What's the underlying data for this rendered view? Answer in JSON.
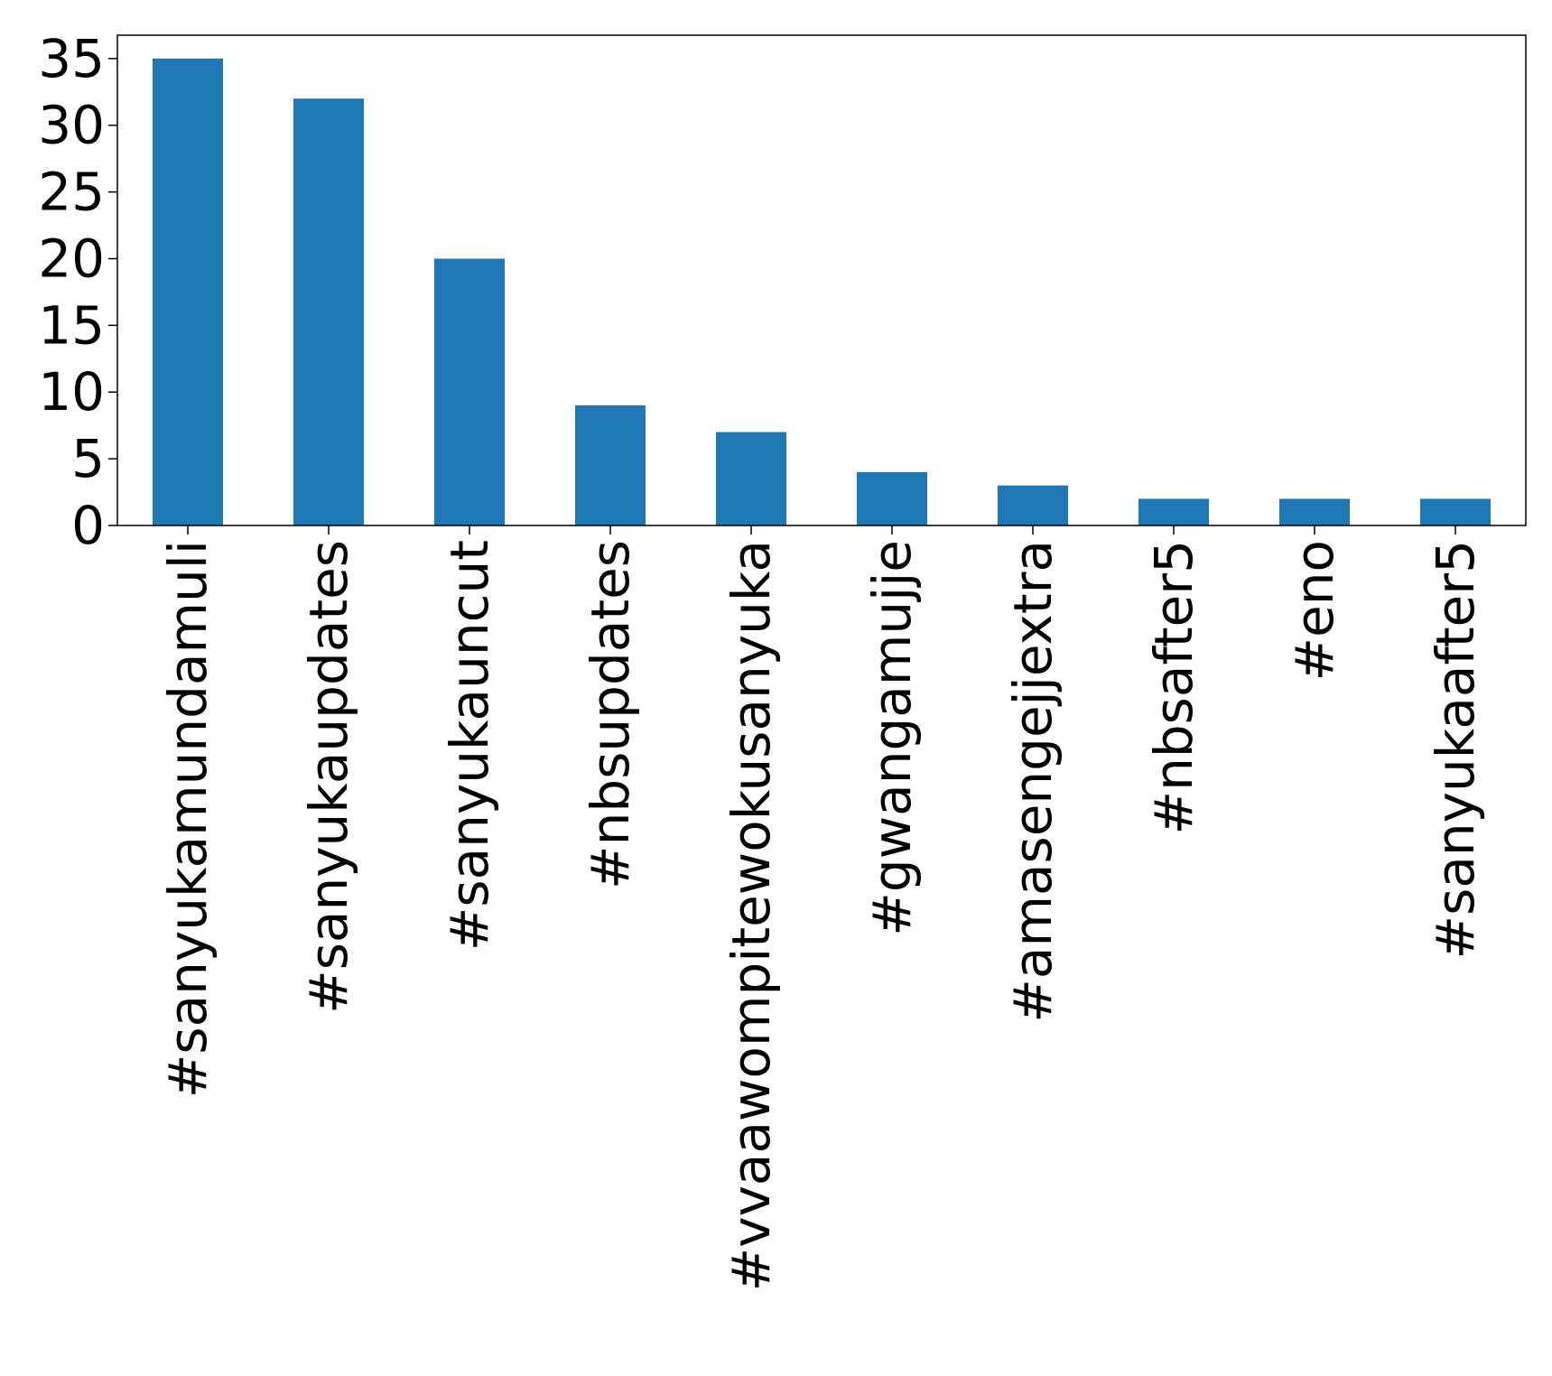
{
  "chart_data": {
    "type": "bar",
    "title": "",
    "xlabel": "",
    "ylabel": "",
    "categories": [
      "#sanyukamundamuli",
      "#sanyukaupdates",
      "#sanyukauncut",
      "#nbsupdates",
      "#vvaawompitewokusanyuka",
      "#gwangamujje",
      "#amasengejjextra",
      "#nbsafter5",
      "#eno",
      "#sanyukaafter5"
    ],
    "values": [
      35,
      32,
      20,
      9,
      7,
      4,
      3,
      2,
      2,
      2
    ],
    "ylim": [
      0,
      36.75
    ],
    "yticks": [
      0,
      5,
      10,
      15,
      20,
      25,
      30,
      35
    ],
    "bar_color": "#1f77b4",
    "grid": false,
    "legend": "none"
  }
}
